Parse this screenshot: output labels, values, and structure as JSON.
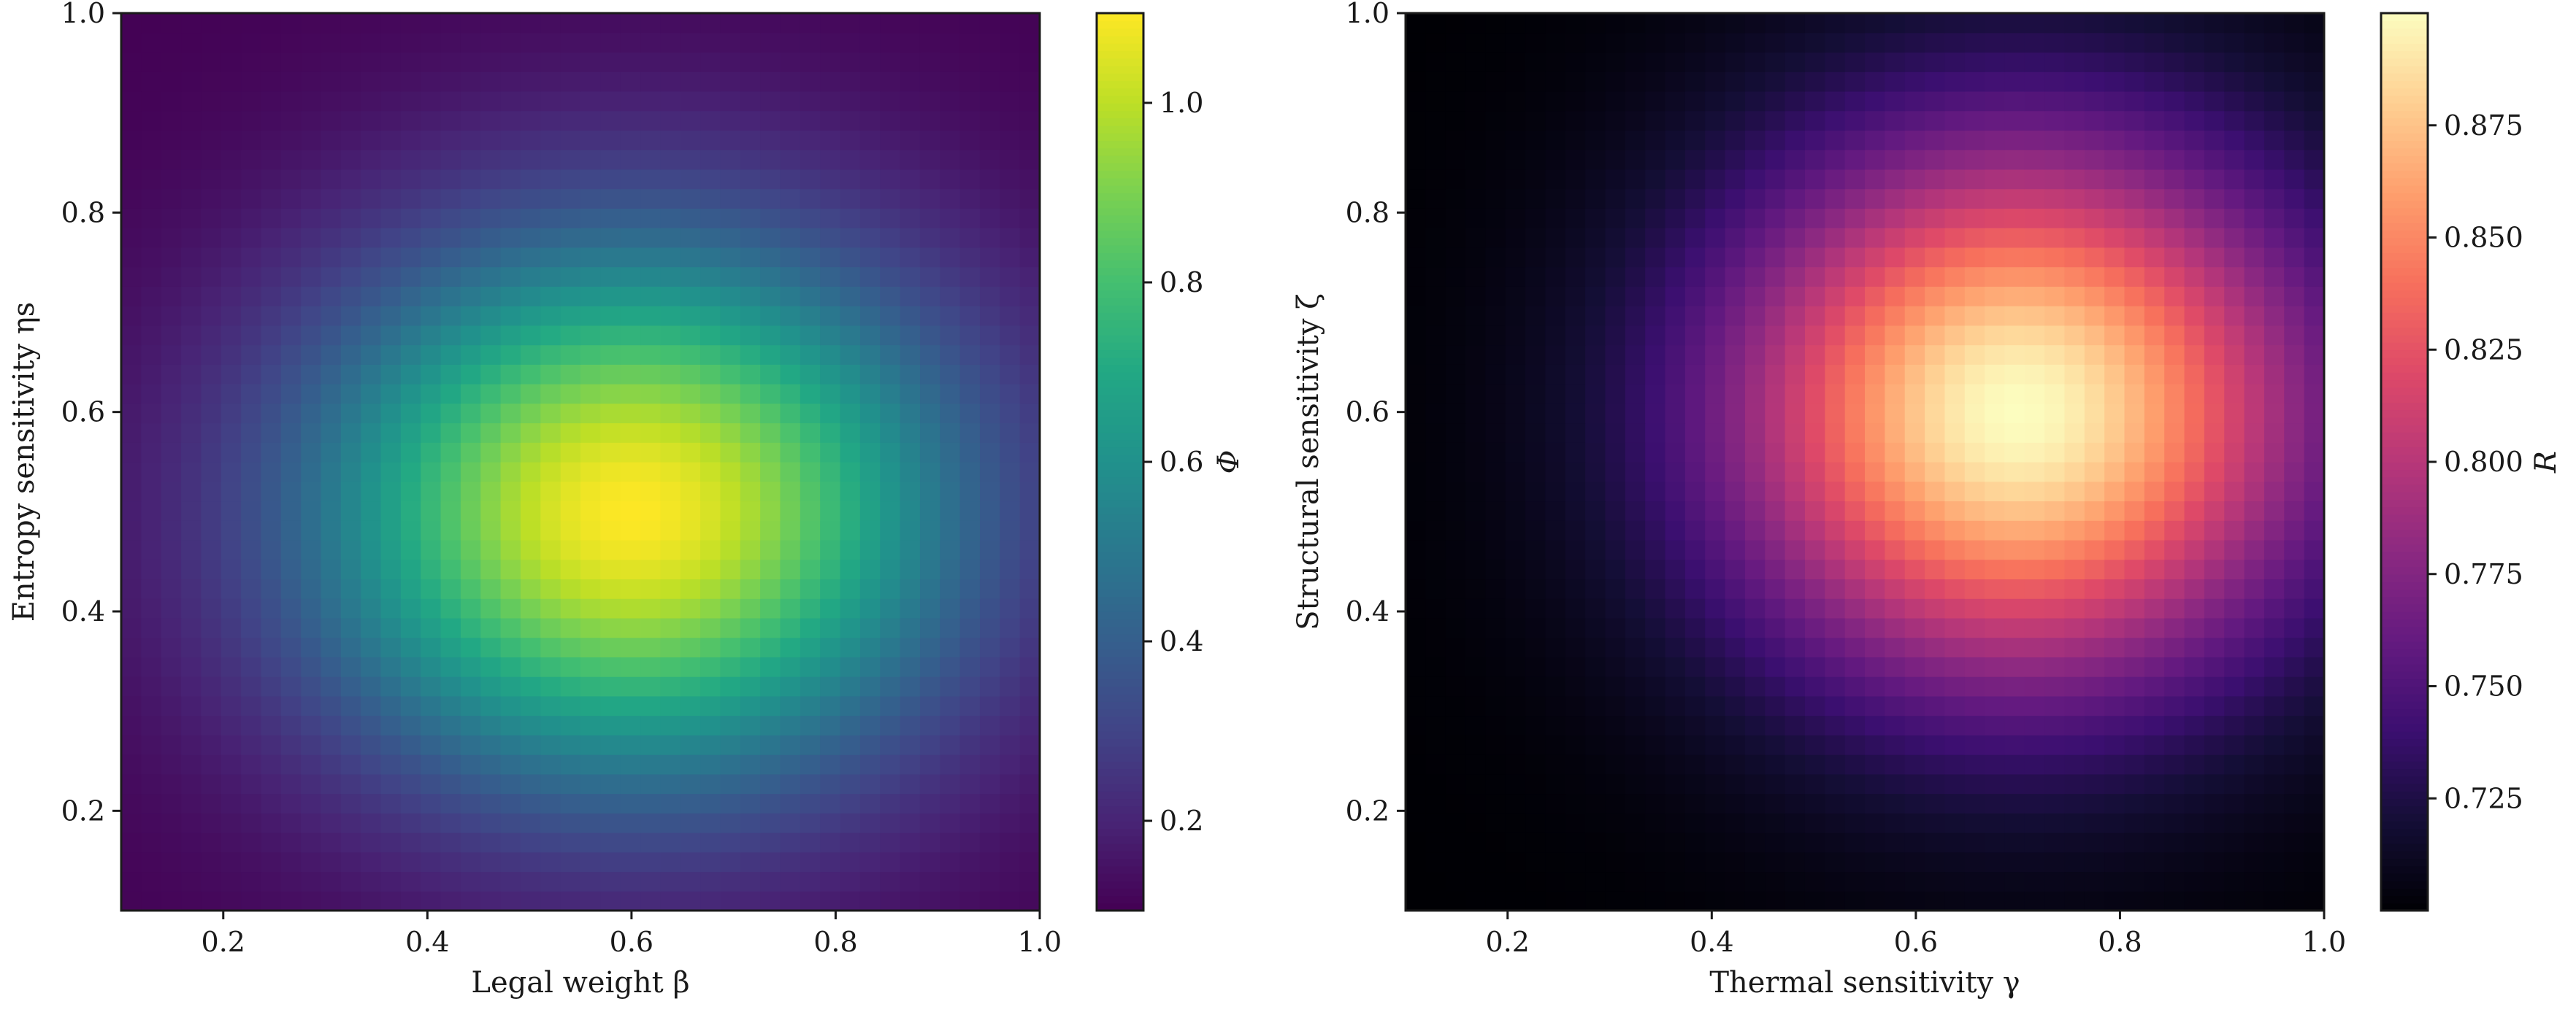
{
  "chart_data": [
    {
      "type": "heatmap",
      "title": "",
      "colormap": "viridis",
      "xlabel": "Legal weight β",
      "ylabel": "Entropy sensitivity ηs",
      "colorbar_label": "Φ",
      "xlim": [
        0.1,
        1.0
      ],
      "ylim": [
        0.1,
        1.0
      ],
      "xticks": [
        "0.2",
        "0.4",
        "0.6",
        "0.8",
        "1.0"
      ],
      "yticks": [
        "0.2",
        "0.4",
        "0.6",
        "0.8",
        "1.0"
      ],
      "colorbar_range": [
        0.1,
        1.1
      ],
      "colorbar_ticks": [
        "0.2",
        "0.4",
        "0.6",
        "0.8",
        "1.0"
      ],
      "grid_resolution": 46,
      "field": {
        "description": "Gaussian peak",
        "peak_x": 0.6,
        "peak_y": 0.5,
        "sigma_x": 0.22,
        "sigma_y": 0.19,
        "min_value": 0.1,
        "peak_value": 1.1
      }
    },
    {
      "type": "heatmap",
      "title": "",
      "colormap": "magma",
      "xlabel": "Thermal sensitivity γ",
      "ylabel": "Structural sensitivity ζ",
      "colorbar_label": "R",
      "xlim": [
        0.1,
        1.0
      ],
      "ylim": [
        0.1,
        1.0
      ],
      "xticks": [
        "0.2",
        "0.4",
        "0.6",
        "0.8",
        "1.0"
      ],
      "yticks": [
        "0.2",
        "0.4",
        "0.6",
        "0.8",
        "1.0"
      ],
      "colorbar_range": [
        0.7,
        0.9
      ],
      "colorbar_ticks": [
        "0.725",
        "0.750",
        "0.775",
        "0.800",
        "0.825",
        "0.850",
        "0.875"
      ],
      "grid_resolution": 46,
      "field": {
        "description": "Gaussian peak",
        "peak_x": 0.7,
        "peak_y": 0.6,
        "sigma_x": 0.2,
        "sigma_y": 0.19,
        "min_value": 0.7,
        "peak_value": 0.9
      }
    }
  ]
}
